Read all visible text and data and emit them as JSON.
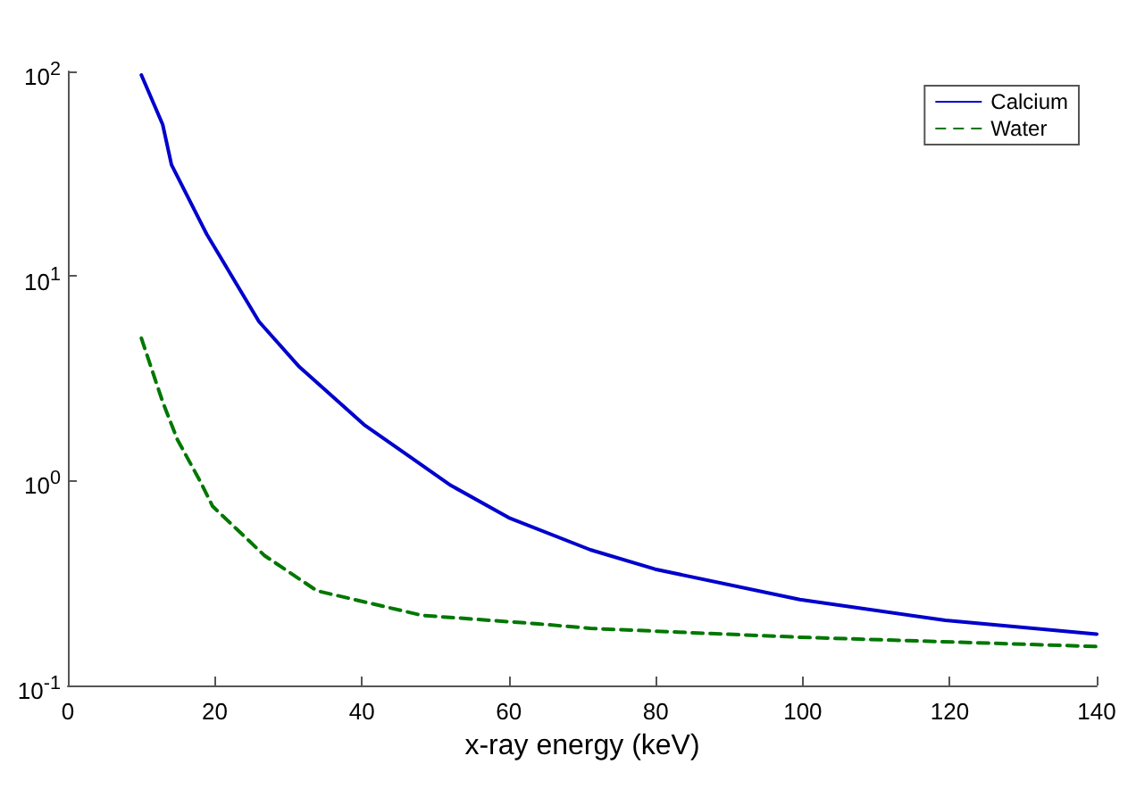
{
  "chart_data": {
    "type": "line",
    "xlabel": "x-ray energy (keV)",
    "x": [
      10,
      12.9,
      14.1,
      18.9,
      26,
      31.5,
      40.3,
      52.1,
      60,
      71.1,
      79.9,
      99.6,
      119.4,
      140
    ],
    "series": [
      {
        "name": "Calcium",
        "color": "#0000cc",
        "line_style": "solid",
        "values": [
          96,
          55,
          35,
          16,
          6,
          3.6,
          1.88,
          0.95,
          0.66,
          0.46,
          0.37,
          0.263,
          0.208,
          0.178
        ]
      },
      {
        "name": "Water",
        "color": "#007700",
        "line_style": "dashed",
        "x": [
          10,
          12.9,
          14.9,
          18.1,
          19.7,
          26.8,
          33.9,
          48.2,
          64,
          71.1,
          99.6,
          140
        ],
        "values": [
          4.97,
          2.43,
          1.59,
          0.98,
          0.75,
          0.43,
          0.29,
          0.22,
          0.2,
          0.19,
          0.172,
          0.155
        ]
      }
    ],
    "xlim": [
      0,
      140
    ],
    "xticks": [
      0,
      20,
      40,
      60,
      80,
      100,
      120,
      140
    ],
    "ylim": [
      0.1,
      100
    ],
    "yticks": [
      {
        "value": 0.1,
        "label": "10$^{-1}$"
      },
      {
        "value": 1,
        "label": "10$^{0}$"
      },
      {
        "value": 10,
        "label": "10$^{1}$"
      },
      {
        "value": 100,
        "label": "10$^{2}$"
      }
    ],
    "log": "y",
    "grid": false,
    "legend": "top right",
    "marker": "none"
  }
}
